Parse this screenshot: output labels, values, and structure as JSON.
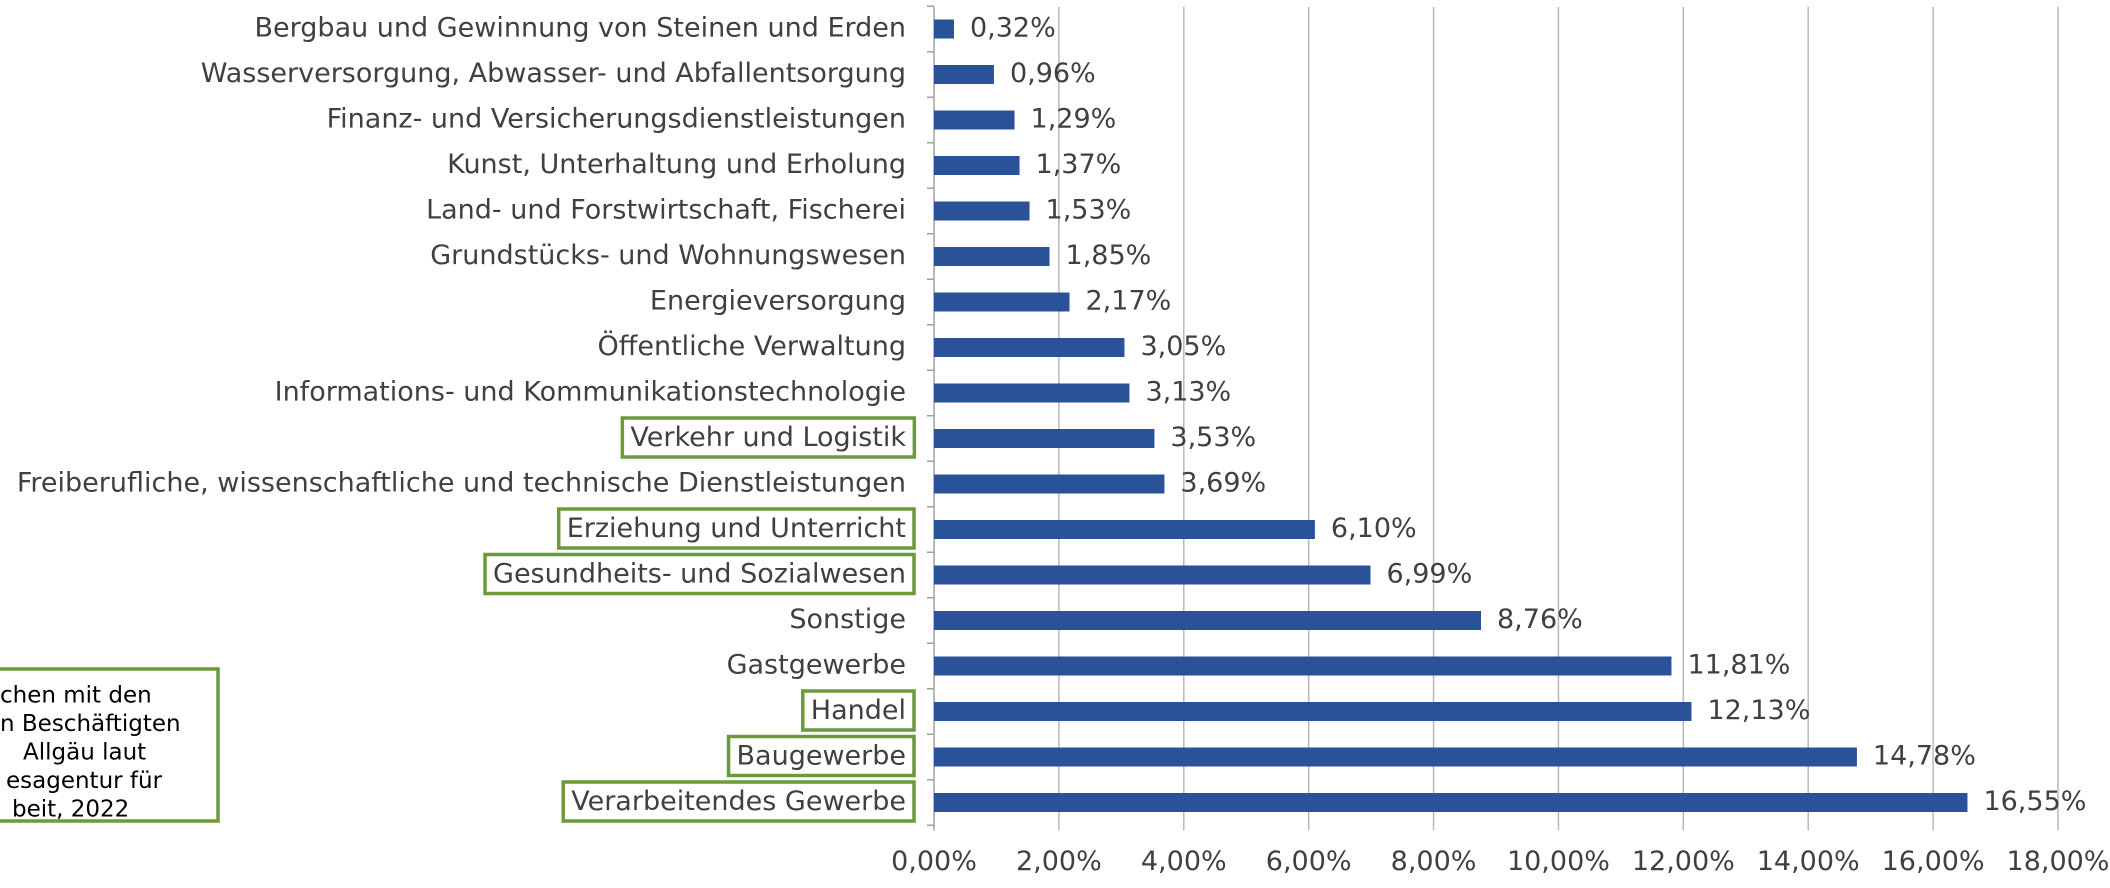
{
  "chart_data": {
    "type": "bar",
    "orientation": "horizontal",
    "categories": [
      "Bergbau und Gewinnung von Steinen und Erden",
      "Wasserversorgung, Abwasser- und Abfallentsorgung",
      "Finanz- und Versicherungsdienstleistungen",
      "Kunst, Unterhaltung und Erholung",
      "Land- und Forstwirtschaft, Fischerei",
      "Grundstücks- und Wohnungswesen",
      "Energieversorgung",
      "Öffentliche Verwaltung",
      "Informations- und Kommunikationstechnologie",
      "Verkehr und Logistik",
      "Freiberufliche, wissenschaftliche und technische Dienstleistungen",
      "Erziehung und Unterricht",
      "Gesundheits- und Sozialwesen",
      "Sonstige",
      "Gastgewerbe",
      "Handel",
      "Baugewerbe",
      "Verarbeitendes Gewerbe"
    ],
    "values": [
      0.32,
      0.96,
      1.29,
      1.37,
      1.53,
      1.85,
      2.17,
      3.05,
      3.13,
      3.53,
      3.69,
      6.1,
      6.99,
      8.76,
      11.81,
      12.13,
      14.78,
      16.55
    ],
    "value_labels": [
      "0,32%",
      "0,96%",
      "1,29%",
      "1,37%",
      "1,53%",
      "1,85%",
      "2,17%",
      "3,05%",
      "3,13%",
      "3,53%",
      "3,69%",
      "6,10%",
      "6,99%",
      "8,76%",
      "11,81%",
      "12,13%",
      "14,78%",
      "16,55%"
    ],
    "highlight": [
      9,
      11,
      12,
      15,
      16,
      17
    ],
    "color": "#2a5298",
    "highlight_color": "#6a9a3a",
    "xlim": [
      0,
      18
    ],
    "xticks": [
      {
        "value": 0,
        "label": "0,00%"
      },
      {
        "value": 2,
        "label": "2,00%"
      },
      {
        "value": 4,
        "label": "4,00%"
      },
      {
        "value": 6,
        "label": "6,00%"
      },
      {
        "value": 8,
        "label": "8,00%"
      },
      {
        "value": 10,
        "label": "10,00%"
      },
      {
        "value": 12,
        "label": "12,00%"
      },
      {
        "value": 14,
        "label": "14,00%"
      },
      {
        "value": 16,
        "label": "16,00%"
      },
      {
        "value": 18,
        "label": "18,00%"
      }
    ],
    "grid": true,
    "annotation": [
      "chen mit den",
      "n Beschäftigten",
      "Allgäu laut",
      "esagentur für",
      "beit, 2022"
    ]
  }
}
